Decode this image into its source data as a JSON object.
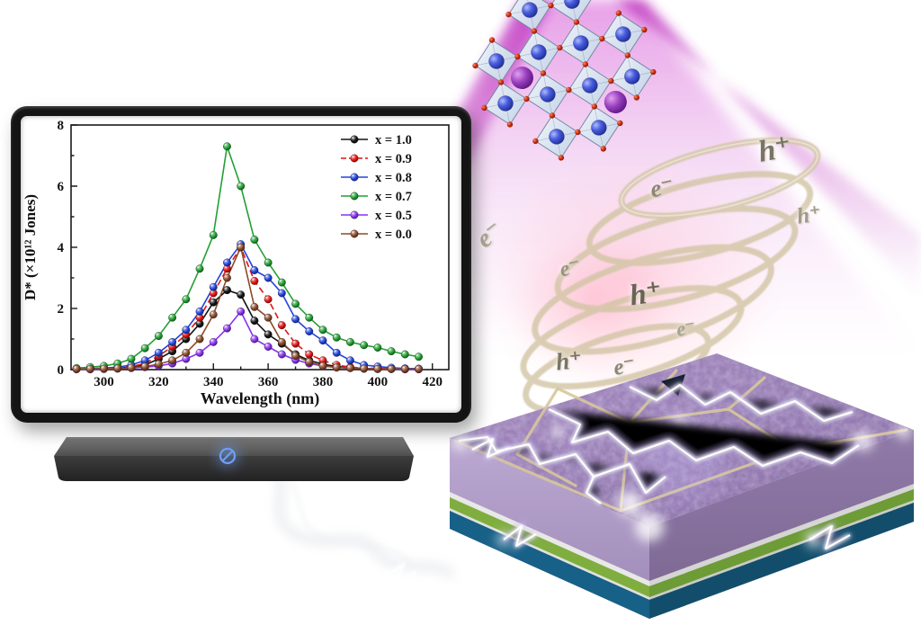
{
  "figure": {
    "particle_labels": [
      {
        "text": "h⁺"
      },
      {
        "text": "e⁻"
      },
      {
        "text": "h⁺"
      },
      {
        "text": "e⁻"
      },
      {
        "text": "e⁻"
      },
      {
        "text": "h⁺"
      },
      {
        "text": "e⁻"
      },
      {
        "text": "h⁺"
      },
      {
        "text": "e⁻"
      }
    ],
    "colors": {
      "beam": "#c23ac2",
      "spiral_ring": "#d2c5a4",
      "spiral_glow": "#ffb4c8",
      "device_top": "#9b84b8",
      "device_layer_green": "#7fae3f",
      "device_layer_teal": "#176087",
      "electrode": "#d8c79c",
      "lightning": "#ffffff",
      "octahedron": "#cfe0ee",
      "atom_blue": "#3346c8",
      "atom_purple": "#7d2ea0",
      "atom_red": "#cc3311",
      "monitor_frame": "#141414",
      "prohibition_icon": "#6f9ff5"
    }
  },
  "chart_data": {
    "type": "line",
    "title": "",
    "xlabel": "Wavelength (nm)",
    "ylabel": "D* (×10¹² Jones)",
    "xlim": [
      288,
      426
    ],
    "ylim": [
      0,
      8
    ],
    "xticks": [
      300,
      320,
      340,
      360,
      380,
      400,
      420
    ],
    "xticks_minor": [
      310,
      330,
      350,
      370,
      390,
      410
    ],
    "yticks": [
      0,
      2,
      4,
      6,
      8
    ],
    "yticks_minor": [
      1,
      3,
      5,
      7
    ],
    "legend_position": "top-right",
    "marker_style": "sphere",
    "x": [
      290,
      295,
      300,
      305,
      310,
      315,
      320,
      325,
      330,
      335,
      340,
      345,
      350,
      355,
      360,
      365,
      370,
      375,
      380,
      385,
      390,
      395,
      400,
      405,
      410,
      415
    ],
    "series": [
      {
        "name": "x = 1.0",
        "color": "#141414",
        "dashed": false,
        "values": [
          0.02,
          0.02,
          0.03,
          0.05,
          0.08,
          0.15,
          0.35,
          0.6,
          1.0,
          1.5,
          2.2,
          2.6,
          2.45,
          1.6,
          1.15,
          0.85,
          0.5,
          0.3,
          0.18,
          0.1,
          0.06,
          0.04,
          0.03,
          0.02,
          0.02,
          0.02
        ]
      },
      {
        "name": "x = 0.9",
        "color": "#e11414",
        "dashed": true,
        "values": [
          0.02,
          0.02,
          0.03,
          0.06,
          0.1,
          0.2,
          0.45,
          0.75,
          1.15,
          1.7,
          2.5,
          3.3,
          4.0,
          2.9,
          2.3,
          1.45,
          0.85,
          0.5,
          0.3,
          0.15,
          0.08,
          0.05,
          0.04,
          0.03,
          0.02,
          0.02
        ]
      },
      {
        "name": "x = 0.8",
        "color": "#2244dd",
        "dashed": false,
        "values": [
          0.03,
          0.03,
          0.05,
          0.08,
          0.15,
          0.3,
          0.55,
          0.9,
          1.3,
          1.9,
          2.7,
          3.5,
          4.1,
          3.25,
          3.0,
          2.5,
          1.65,
          1.25,
          0.95,
          0.55,
          0.3,
          0.15,
          0.1,
          0.06,
          0.04,
          0.03
        ]
      },
      {
        "name": "x = 0.7",
        "color": "#22a033",
        "dashed": false,
        "values": [
          0.05,
          0.08,
          0.12,
          0.2,
          0.35,
          0.7,
          1.1,
          1.7,
          2.3,
          3.3,
          4.4,
          7.3,
          6.0,
          4.25,
          3.5,
          2.85,
          2.15,
          1.7,
          1.3,
          1.05,
          0.9,
          0.8,
          0.72,
          0.6,
          0.5,
          0.42
        ]
      },
      {
        "name": "x = 0.5",
        "color": "#8833ee",
        "dashed": false,
        "values": [
          0.01,
          0.01,
          0.02,
          0.03,
          0.05,
          0.08,
          0.12,
          0.2,
          0.35,
          0.55,
          0.9,
          1.35,
          1.9,
          1.0,
          0.75,
          0.5,
          0.32,
          0.2,
          0.12,
          0.07,
          0.05,
          0.03,
          0.02,
          0.02,
          0.01,
          0.01
        ]
      },
      {
        "name": "x = 0.0",
        "color": "#8a4a2a",
        "dashed": false,
        "values": [
          0.02,
          0.02,
          0.03,
          0.04,
          0.06,
          0.1,
          0.18,
          0.3,
          0.55,
          1.0,
          1.8,
          3.0,
          4.0,
          2.05,
          1.7,
          0.9,
          0.45,
          0.25,
          0.12,
          0.07,
          0.05,
          0.03,
          0.02,
          0.02,
          0.02,
          0.02
        ]
      }
    ]
  }
}
